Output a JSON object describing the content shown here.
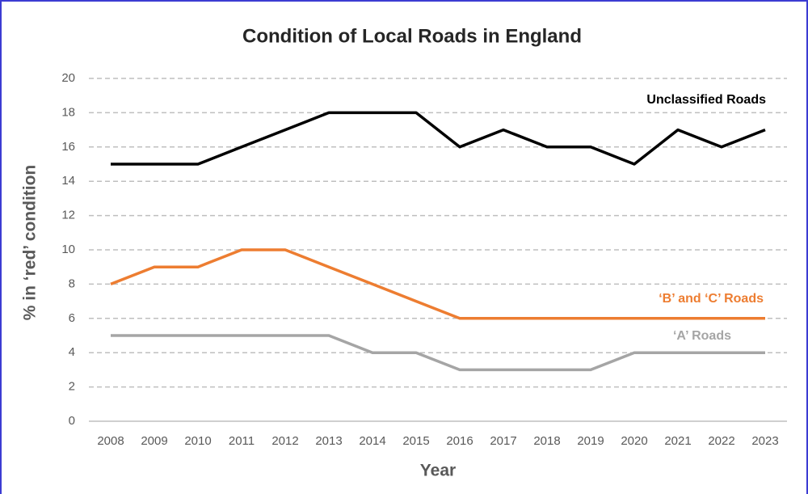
{
  "chart_data": {
    "type": "line",
    "title": "Condition of Local Roads in England",
    "x_label": "Year",
    "y_label": "% in ‘red’ condition",
    "categories": [
      "2008",
      "2009",
      "2010",
      "2011",
      "2012",
      "2013",
      "2014",
      "2015",
      "2016",
      "2017",
      "2018",
      "2019",
      "2020",
      "2021",
      "2022",
      "2023"
    ],
    "series": [
      {
        "name": "Unclassified Roads",
        "color": "#000000",
        "values": [
          15,
          15,
          15,
          16,
          17,
          18,
          18,
          18,
          16,
          17,
          16,
          16,
          15,
          17,
          16,
          17
        ]
      },
      {
        "name": "‘B’ and ‘C’ Roads",
        "color": "#ed7d31",
        "values": [
          8,
          9,
          9,
          10,
          10,
          9,
          8,
          7,
          6,
          6,
          6,
          6,
          6,
          6,
          6,
          6
        ]
      },
      {
        "name": "‘A’ Roads",
        "color": "#a5a5a5",
        "values": [
          5,
          5,
          5,
          5,
          5,
          5,
          4,
          4,
          3,
          3,
          3,
          3,
          4,
          4,
          4,
          4
        ]
      }
    ],
    "ylim": [
      0,
      20
    ],
    "yticks": [
      0,
      2,
      4,
      6,
      8,
      10,
      12,
      14,
      16,
      18,
      20
    ],
    "grid": true
  }
}
